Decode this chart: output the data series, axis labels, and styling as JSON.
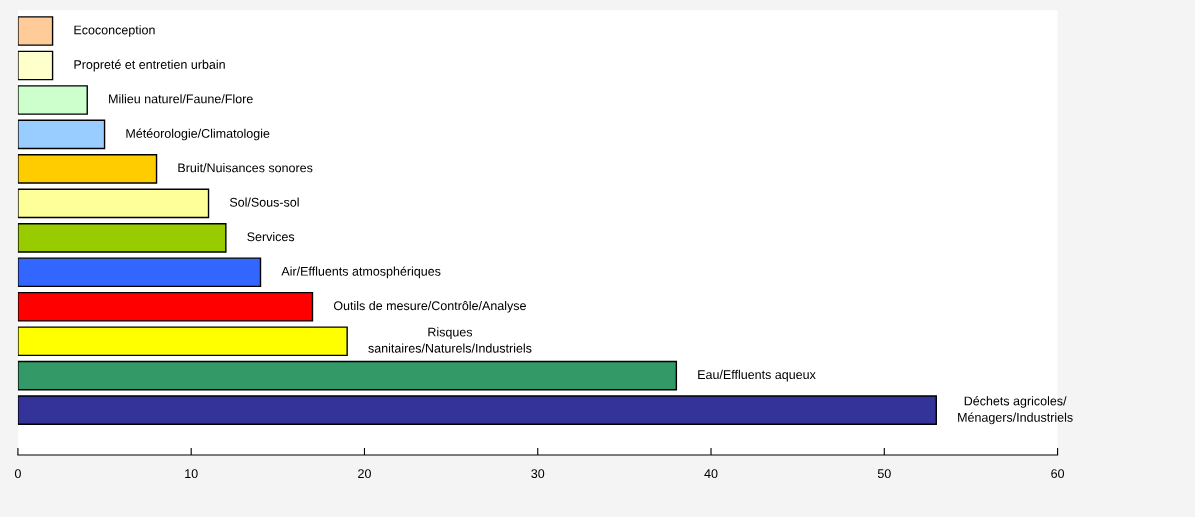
{
  "chart_data": {
    "type": "bar",
    "orientation": "horizontal",
    "categories": [
      "Ecoconception",
      "Propreté et entretien urbain",
      "Milieu naturel/Faune/Flore",
      "Météorologie/Climatologie",
      "Bruit/Nuisances sonores",
      "Sol/Sous-sol",
      "Services",
      "Air/Effluents atmosphériques",
      "Outils de mesure/Contrôle/Analyse",
      "Risques\nsanitaires/Naturels/Industriels",
      "Eau/Effluents aqueux",
      "Déchets agricoles/\nMénagers/Industriels"
    ],
    "values": [
      2,
      2,
      4,
      5,
      8,
      11,
      12,
      14,
      17,
      19,
      38,
      53
    ],
    "colors": [
      "#ffcc99",
      "#ffffcc",
      "#ccffcc",
      "#99ccff",
      "#ffcc00",
      "#ffff99",
      "#99cc00",
      "#3366ff",
      "#ff0000",
      "#ffff00",
      "#339966",
      "#333399"
    ],
    "xlim": [
      0,
      60
    ],
    "xticks": [
      0,
      10,
      20,
      30,
      40,
      50,
      60
    ],
    "grid": false,
    "legend": false
  }
}
